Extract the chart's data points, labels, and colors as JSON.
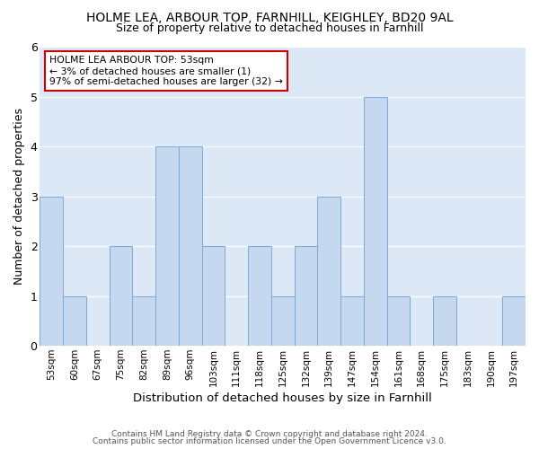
{
  "title_line1": "HOLME LEA, ARBOUR TOP, FARNHILL, KEIGHLEY, BD20 9AL",
  "title_line2": "Size of property relative to detached houses in Farnhill",
  "xlabel": "Distribution of detached houses by size in Farnhill",
  "ylabel": "Number of detached properties",
  "categories": [
    "53sqm",
    "60sqm",
    "67sqm",
    "75sqm",
    "82sqm",
    "89sqm",
    "96sqm",
    "103sqm",
    "111sqm",
    "118sqm",
    "125sqm",
    "132sqm",
    "139sqm",
    "147sqm",
    "154sqm",
    "161sqm",
    "168sqm",
    "175sqm",
    "183sqm",
    "190sqm",
    "197sqm"
  ],
  "values": [
    3,
    1,
    0,
    2,
    1,
    4,
    4,
    2,
    0,
    2,
    1,
    2,
    3,
    1,
    5,
    1,
    0,
    1,
    0,
    0,
    1
  ],
  "bar_color": "#c5d8f0",
  "bar_edge_color": "#7aaad4",
  "bg_color": "#dce8f5",
  "annotation_text": "HOLME LEA ARBOUR TOP: 53sqm\n← 3% of detached houses are smaller (1)\n97% of semi-detached houses are larger (32) →",
  "annotation_box_color": "#ffffff",
  "annotation_box_edge": "#cc0000",
  "ylim": [
    0,
    6
  ],
  "yticks": [
    0,
    1,
    2,
    3,
    4,
    5,
    6
  ],
  "footer_line1": "Contains HM Land Registry data © Crown copyright and database right 2024.",
  "footer_line2": "Contains public sector information licensed under the Open Government Licence v3.0."
}
